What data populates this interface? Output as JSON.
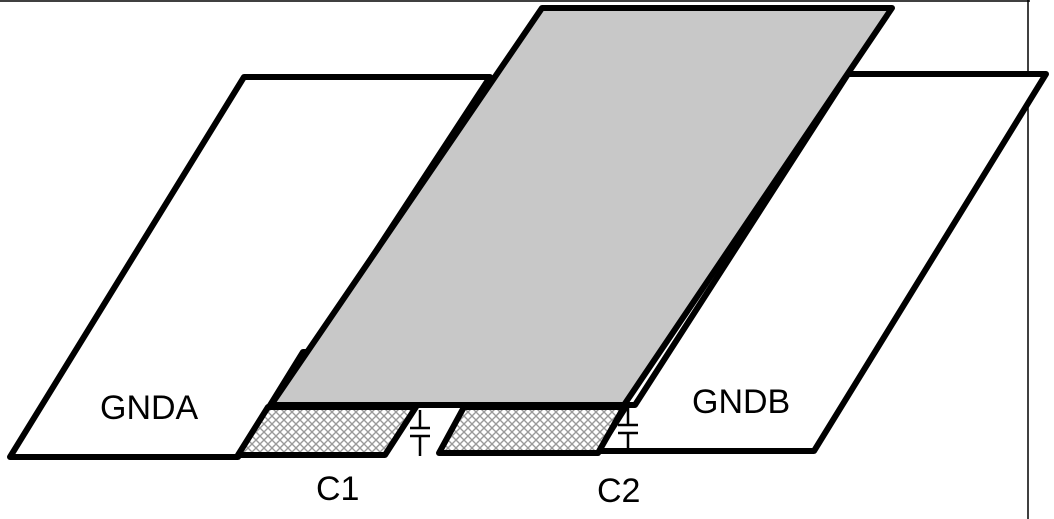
{
  "diagram": {
    "labels": {
      "plane_a": "GNDA",
      "plane_b": "GNDB",
      "cap_1": "C1",
      "cap_2": "C2"
    },
    "colors": {
      "stroke": "#000000",
      "top_plane_fill": "#c8c8c8",
      "ground_plane_fill": "#ffffff",
      "hatch": "#9a9a9a"
    },
    "elements": [
      "ground-plane-a",
      "ground-plane-b",
      "top-plane",
      "capacitor-1-pad",
      "capacitor-2-pad",
      "capacitor-1-symbol",
      "capacitor-2-symbol"
    ]
  }
}
